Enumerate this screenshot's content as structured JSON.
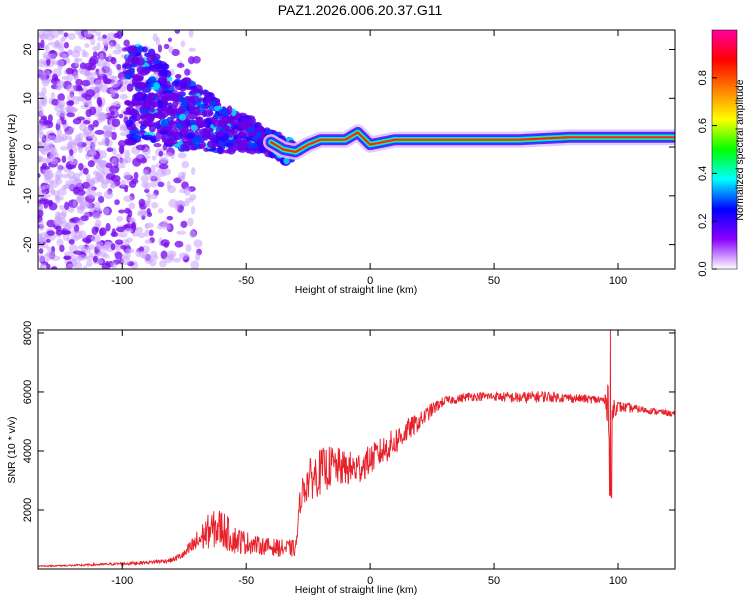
{
  "title": "PAZ1.2026.006.20.37.G11",
  "chart_data": [
    {
      "type": "heatmap",
      "xlabel": "Height of straight line (km)",
      "ylabel": "Frequency (Hz)",
      "xlim": [
        -134,
        123
      ],
      "ylim": [
        -25,
        24
      ],
      "xticks": [
        "-100",
        "-50",
        "0",
        "50",
        "100"
      ],
      "xtick_values": [
        -100,
        -50,
        0,
        50,
        100
      ],
      "yticks": [
        "20",
        "10",
        "0",
        "-10",
        "-20"
      ],
      "ytick_values": [
        20,
        10,
        0,
        -10,
        -20
      ],
      "colorbar": {
        "label": "Normalized spectral amplitude",
        "range": [
          0,
          1
        ],
        "ticks": [
          "0.0",
          "0.2",
          "0.4",
          "0.6",
          "0.8"
        ],
        "tick_values": [
          0.0,
          0.2,
          0.4,
          0.6,
          0.8
        ],
        "colors": [
          "#ffffff",
          "#8a00ff",
          "#0000ff",
          "#00ffff",
          "#00ff00",
          "#ffff00",
          "#ff8000",
          "#ff0000",
          "#ff00a0"
        ]
      },
      "ridge": {
        "x": [
          -90,
          -80,
          -70,
          -60,
          -50,
          -45,
          -40,
          -35,
          -30,
          -25,
          -20,
          -10,
          -5,
          0,
          10,
          20,
          40,
          60,
          80,
          100,
          123
        ],
        "y": [
          11,
          8,
          6,
          4,
          3,
          2,
          1,
          -0.5,
          -1,
          0.5,
          1.5,
          1.5,
          3,
          0.5,
          1.5,
          1.5,
          1.5,
          1.5,
          2,
          2,
          2
        ]
      },
      "colors": {
        "axis": "#000000"
      }
    },
    {
      "type": "line",
      "xlabel": "Height of straight line (km)",
      "ylabel": "SNR (10 * v/v)",
      "xlim": [
        -134,
        123
      ],
      "ylim": [
        0,
        8100
      ],
      "xticks": [
        "-100",
        "-50",
        "0",
        "50",
        "100"
      ],
      "xtick_values": [
        -100,
        -50,
        0,
        50,
        100
      ],
      "yticks": [
        "8000",
        "6000",
        "4000",
        "2000"
      ],
      "ytick_values": [
        8000,
        6000,
        4000,
        2000
      ],
      "series": [
        {
          "name": "SNR",
          "color": "#e8202a",
          "x": [
            -134,
            -120,
            -100,
            -90,
            -80,
            -75,
            -70,
            -65,
            -60,
            -55,
            -50,
            -45,
            -40,
            -35,
            -30,
            -28,
            -25,
            -20,
            -15,
            -10,
            -5,
            0,
            5,
            10,
            15,
            20,
            25,
            30,
            35,
            40,
            50,
            60,
            70,
            80,
            90,
            95,
            97,
            98,
            100,
            110,
            123
          ],
          "y": [
            100,
            120,
            180,
            220,
            300,
            500,
            900,
            1300,
            1400,
            1000,
            900,
            800,
            750,
            700,
            700,
            2500,
            3000,
            3300,
            3500,
            3400,
            3400,
            3700,
            4000,
            4300,
            4700,
            5000,
            5400,
            5700,
            5750,
            5850,
            5850,
            5800,
            5850,
            5800,
            5750,
            5700,
            5700,
            5500,
            5500,
            5400,
            5250
          ],
          "noise": [
            20,
            30,
            50,
            60,
            80,
            150,
            400,
            600,
            700,
            500,
            400,
            300,
            300,
            300,
            300,
            500,
            700,
            800,
            700,
            600,
            600,
            500,
            500,
            500,
            400,
            300,
            250,
            150,
            150,
            150,
            150,
            200,
            200,
            150,
            150,
            200,
            1800,
            400,
            200,
            120,
            100
          ]
        }
      ],
      "colors": {
        "axis": "#000000"
      }
    }
  ]
}
